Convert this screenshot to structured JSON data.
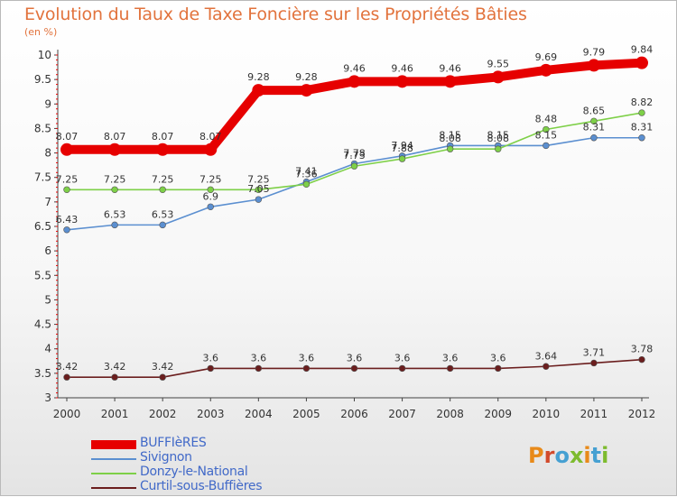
{
  "title": "Evolution du Taux de Taxe Foncière sur les Propriétés Bâties",
  "unit": "(en %)",
  "logo": {
    "letters": [
      "P",
      "r",
      "o",
      "x",
      "i",
      "t",
      "i"
    ],
    "colors": [
      "#e88a1a",
      "#d24a2b",
      "#46a0d2",
      "#7dbb2e",
      "#e88a1a",
      "#46a0d2",
      "#7dbb2e"
    ]
  },
  "chart_data": {
    "type": "line",
    "x": [
      2000,
      2001,
      2002,
      2003,
      2004,
      2005,
      2006,
      2007,
      2008,
      2009,
      2010,
      2011,
      2012
    ],
    "ylim": [
      3,
      10
    ],
    "yticks": [
      3,
      3.5,
      4,
      4.5,
      5,
      5.5,
      6,
      6.5,
      7,
      7.5,
      8,
      8.5,
      9,
      9.5,
      10
    ],
    "grid": false,
    "legend_position": "bottom-left",
    "series": [
      {
        "name": "BUFFIèRES",
        "color": "#e60000",
        "values": [
          8.07,
          8.07,
          8.07,
          8.07,
          9.28,
          9.28,
          9.46,
          9.46,
          9.46,
          9.55,
          9.69,
          9.79,
          9.84
        ],
        "labels": [
          "8.07",
          "8.07",
          "8.07",
          "8.07",
          "9.28",
          "9.28",
          "9.46",
          "9.46",
          "9.46",
          "9.55",
          "9.69",
          "9.79",
          "9.84"
        ]
      },
      {
        "name": "Sivignon",
        "color": "#5b8fd0",
        "values": [
          6.43,
          6.53,
          6.53,
          6.9,
          7.05,
          7.41,
          7.78,
          7.94,
          8.15,
          8.15,
          8.15,
          8.31,
          8.31
        ],
        "labels": [
          "6.43",
          "6.53",
          "6.53",
          "6.9",
          "7.05",
          "7.41",
          "7.78",
          "7.94",
          "8.15",
          "8.15",
          "8.15",
          "8.31",
          "8.31"
        ]
      },
      {
        "name": "Donzy-le-National",
        "color": "#7ed048",
        "values": [
          7.25,
          7.25,
          7.25,
          7.25,
          7.25,
          7.36,
          7.73,
          7.88,
          8.08,
          8.08,
          8.48,
          8.65,
          8.82
        ],
        "labels": [
          "7.25",
          "7.25",
          "7.25",
          "7.25",
          "7.25",
          "7.36",
          "7.73",
          "7.88",
          "8.08",
          "8.08",
          "8.48",
          "8.65",
          "8.82"
        ]
      },
      {
        "name": "Curtil-sous-Buffières",
        "color": "#6b1e1e",
        "values": [
          3.42,
          3.42,
          3.42,
          3.6,
          3.6,
          3.6,
          3.6,
          3.6,
          3.6,
          3.6,
          3.64,
          3.71,
          3.78
        ],
        "labels": [
          "3.42",
          "3.42",
          "3.42",
          "3.6",
          "3.6",
          "3.6",
          "3.6",
          "3.6",
          "3.6",
          "3.6",
          "3.64",
          "3.71",
          "3.78"
        ]
      }
    ]
  }
}
